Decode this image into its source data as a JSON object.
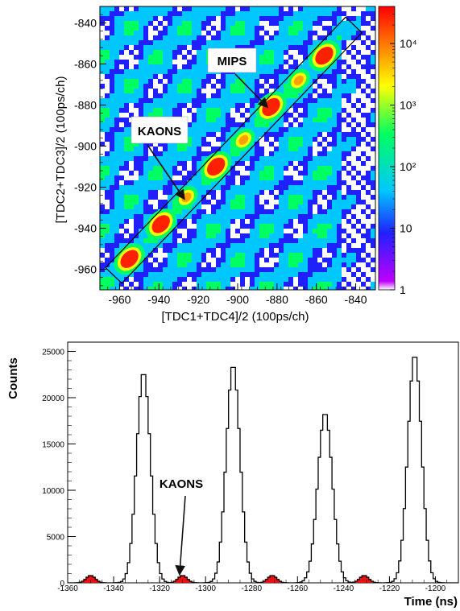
{
  "chart_data": [
    {
      "type": "heatmap",
      "xlabel": "[TDC1+TDC4]/2 (100ps/ch)",
      "ylabel": "[TDC2+TDC3]/2 (100ps/ch)",
      "xlim": [
        -970,
        -830
      ],
      "ylim": [
        -970,
        -832
      ],
      "xticks": [
        "-960",
        "-940",
        "-920",
        "-900",
        "-880",
        "-860",
        "-840"
      ],
      "yticks": [
        "-840",
        "-860",
        "-880",
        "-900",
        "-920",
        "-940",
        "-960"
      ],
      "colorbar": {
        "scale": "log",
        "range": [
          1,
          40000
        ],
        "tick_labels": [
          "1",
          "10",
          "10²",
          "10³",
          "10⁴"
        ],
        "colors": [
          "#ffffff",
          "#c000ff",
          "#2020ff",
          "#00c8ff",
          "#00ff60",
          "#ffff00",
          "#ff8000",
          "#ff0000"
        ]
      },
      "blobs": [
        {
          "x": -955,
          "y": -955,
          "counts": 20000
        },
        {
          "x": -939,
          "y": -938,
          "counts": 35000
        },
        {
          "x": -926,
          "y": -925,
          "counts": 2000
        },
        {
          "x": -911,
          "y": -910,
          "counts": 35000
        },
        {
          "x": -897,
          "y": -897,
          "counts": 2000
        },
        {
          "x": -883,
          "y": -881,
          "counts": 35000
        },
        {
          "x": -869,
          "y": -868,
          "counts": 2000
        },
        {
          "x": -856,
          "y": -856,
          "counts": 35000
        }
      ],
      "selection_band": "diagonal box",
      "annotations": [
        {
          "text": "MIPS",
          "points_to": {
            "x": -883,
            "y": -881
          }
        },
        {
          "text": "KAONS",
          "points_to": {
            "x": -926,
            "y": -925
          }
        }
      ]
    },
    {
      "type": "histogram",
      "xlabel": "Time (ns)",
      "ylabel": "Counts",
      "xlim": [
        -1360,
        -1190
      ],
      "ylim": [
        0,
        26000
      ],
      "xticks": [
        "-1360",
        "-1340",
        "-1320",
        "-1300",
        "-1280",
        "-1260",
        "-1240",
        "-1220",
        "-1200"
      ],
      "yticks": [
        "0",
        "5000",
        "10000",
        "15000",
        "20000",
        "25000"
      ],
      "series": [
        {
          "role": "mips",
          "color": "#000000",
          "peaks": [
            {
              "center": -1327,
              "height": 22800,
              "sigma": 3.0
            },
            {
              "center": -1288,
              "height": 23600,
              "sigma": 3.0
            },
            {
              "center": -1248,
              "height": 18400,
              "sigma": 3.2
            },
            {
              "center": -1209,
              "height": 24700,
              "sigma": 3.0
            }
          ]
        },
        {
          "role": "kaons",
          "color": "#e81010",
          "peaks": [
            {
              "center": -1350,
              "height": 800,
              "sigma": 2.0
            },
            {
              "center": -1310,
              "height": 800,
              "sigma": 2.0
            },
            {
              "center": -1271,
              "height": 800,
              "sigma": 2.0
            },
            {
              "center": -1231,
              "height": 800,
              "sigma": 2.0
            }
          ]
        }
      ],
      "annotations": [
        {
          "text": "KAONS",
          "points_to": {
            "x": -1310,
            "y": 300
          }
        }
      ]
    }
  ]
}
